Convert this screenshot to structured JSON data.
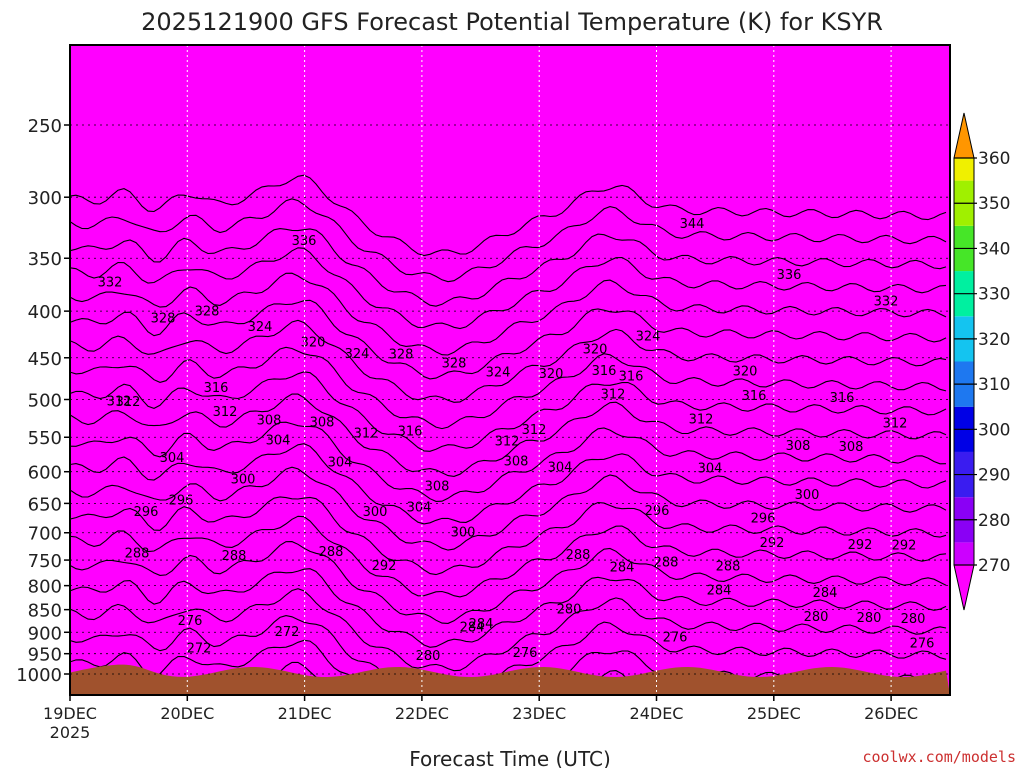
{
  "chart_data": {
    "type": "heatmap",
    "title": "2025121900 GFS Forecast Potential Temperature (K) for KSYR",
    "xlabel": "Forecast Time (UTC)",
    "ylabel": "",
    "x_ticks": [
      "19DEC",
      "20DEC",
      "21DEC",
      "22DEC",
      "23DEC",
      "24DEC",
      "25DEC",
      "26DEC"
    ],
    "x_year": "2025",
    "x_range_days": [
      0,
      7.5
    ],
    "y_ticks": [
      250,
      300,
      350,
      400,
      450,
      500,
      550,
      600,
      650,
      700,
      750,
      800,
      850,
      900,
      950,
      1000
    ],
    "y_range_hpa": [
      200,
      1000
    ],
    "y_scale": "log-pressure",
    "colorbar": {
      "levels": [
        270,
        280,
        290,
        300,
        310,
        320,
        330,
        340,
        350,
        360
      ],
      "colors": [
        "#ff00ff",
        "#cc00ff",
        "#8a00f5",
        "#3a1cf0",
        "#0000e6",
        "#1e78f0",
        "#14c4f0",
        "#00f0a0",
        "#46e628",
        "#a0f000",
        "#f0f000",
        "#f0c800",
        "#ff9600"
      ]
    },
    "contour_labels": [
      "332",
      "328",
      "336",
      "328",
      "324",
      "320",
      "344",
      "336",
      "332",
      "328",
      "324",
      "324",
      "328",
      "320",
      "324",
      "320",
      "316",
      "312",
      "316",
      "320",
      "316",
      "312",
      "316",
      "312",
      "308",
      "312",
      "304",
      "308",
      "312",
      "300",
      "304",
      "296",
      "316",
      "308",
      "312",
      "312",
      "308",
      "304",
      "308",
      "312",
      "304",
      "300",
      "292",
      "296",
      "304",
      "300",
      "284",
      "280",
      "288",
      "296",
      "292",
      "288",
      "288",
      "288",
      "280",
      "276",
      "284",
      "284",
      "280",
      "280",
      "276",
      "272",
      "292",
      "284",
      "288",
      "276",
      "292",
      "280",
      "296",
      "300",
      "304",
      "308",
      "312",
      "316",
      "288",
      "284",
      "276",
      "272"
    ],
    "terrain_color": "#a0522d",
    "credit": "coolwx.com/models"
  }
}
